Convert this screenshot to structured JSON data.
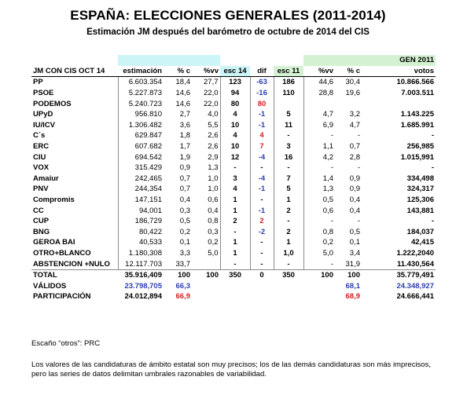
{
  "title": "ESPAÑA: ELECCIONES GENERALES (2011-2014)",
  "subtitle": "Estimación JM después del barómetro de octubre de 2014 del CIS",
  "gen_label": "GEN 2011",
  "headers": [
    "JM CON CIS OCT 14",
    "estimación",
    "% c",
    "%vv",
    "esc 14",
    "dif",
    "esc 11",
    "%vv",
    "% c",
    "votos"
  ],
  "rows": [
    {
      "party": "PP",
      "est": "6.603.354",
      "pc": "18,4",
      "pvv": "27,7",
      "esc14": "123",
      "dif": "-63",
      "esc11": "186",
      "pvv11": "44,6",
      "pc11": "30,4",
      "votos": "10.866.566"
    },
    {
      "party": "PSOE",
      "est": "5.227.873",
      "pc": "14,6",
      "pvv": "22,0",
      "esc14": "94",
      "dif": "-16",
      "esc11": "110",
      "pvv11": "28,8",
      "pc11": "19,6",
      "votos": "7.003.511"
    },
    {
      "party": "PODEMOS",
      "est": "5.240.723",
      "pc": "14,6",
      "pvv": "22,0",
      "esc14": "80",
      "dif": "80",
      "esc11": "",
      "pvv11": "",
      "pc11": "",
      "votos": ""
    },
    {
      "party": "UPyD",
      "est": "956.810",
      "pc": "2,7",
      "pvv": "4,0",
      "esc14": "4",
      "dif": "-1",
      "esc11": "5",
      "pvv11": "4,7",
      "pc11": "3,2",
      "votos": "1.143.225"
    },
    {
      "party": "IU/ICV",
      "est": "1.306.482",
      "pc": "3,6",
      "pvv": "5,5",
      "esc14": "10",
      "dif": "-1",
      "esc11": "11",
      "pvv11": "6,9",
      "pc11": "4,7",
      "votos": "1.685.991"
    },
    {
      "party": "C´s",
      "est": "629.847",
      "pc": "1,8",
      "pvv": "2,6",
      "esc14": "4",
      "dif": "4",
      "esc11": "-",
      "pvv11": "-",
      "pc11": "-",
      "votos": "-"
    },
    {
      "party": "ERC",
      "est": "607.682",
      "pc": "1,7",
      "pvv": "2,6",
      "esc14": "10",
      "dif": "7",
      "esc11": "3",
      "pvv11": "1,1",
      "pc11": "0,7",
      "votos": "256,985"
    },
    {
      "party": "CIU",
      "est": "694.542",
      "pc": "1,9",
      "pvv": "2,9",
      "esc14": "12",
      "dif": "-4",
      "esc11": "16",
      "pvv11": "4,2",
      "pc11": "2,8",
      "votos": "1.015,991"
    },
    {
      "party": "VOX",
      "est": "315.429",
      "pc": "0,9",
      "pvv": "1,3",
      "esc14": "-",
      "dif": "-",
      "esc11": "-",
      "pvv11": "-",
      "pc11": "-",
      "votos": "-"
    },
    {
      "party": "Amaiur",
      "est": "242,465",
      "pc": "0,7",
      "pvv": "1,0",
      "esc14": "3",
      "dif": "-4",
      "esc11": "7",
      "pvv11": "1,4",
      "pc11": "0,9",
      "votos": "334,498"
    },
    {
      "party": "PNV",
      "est": "244,354",
      "pc": "0,7",
      "pvv": "1,0",
      "esc14": "4",
      "dif": "-1",
      "esc11": "5",
      "pvv11": "1,3",
      "pc11": "0,9",
      "votos": "324,317"
    },
    {
      "party": "Compromis",
      "est": "147,151",
      "pc": "0,4",
      "pvv": "0,6",
      "esc14": "1",
      "dif": "-",
      "esc11": "1",
      "pvv11": "0,5",
      "pc11": "0,4",
      "votos": "125,306"
    },
    {
      "party": "CC",
      "est": "94,001",
      "pc": "0,3",
      "pvv": "0,4",
      "esc14": "1",
      "dif": "-1",
      "esc11": "2",
      "pvv11": "0,6",
      "pc11": "0,4",
      "votos": "143,881"
    },
    {
      "party": "CUP",
      "est": "186,729",
      "pc": "0,5",
      "pvv": "0,8",
      "esc14": "2",
      "dif": "2",
      "esc11": "-",
      "pvv11": "-",
      "pc11": "-",
      "votos": "-"
    },
    {
      "party": "BNG",
      "est": "80,422",
      "pc": "0,2",
      "pvv": "0,3",
      "esc14": "-",
      "dif": "-2",
      "esc11": "2",
      "pvv11": "0,8",
      "pc11": "0,5",
      "votos": "184,037"
    },
    {
      "party": "GEROA BAI",
      "est": "40,533",
      "pc": "0,1",
      "pvv": "0,2",
      "esc14": "1",
      "dif": "-",
      "esc11": "1",
      "pvv11": "0,2",
      "pc11": "0,1",
      "votos": "42,415"
    },
    {
      "party": "OTRO+BLANCO",
      "est": "1.180,308",
      "pc": "3,3",
      "pvv": "5,0",
      "esc14": "1",
      "dif": "-",
      "esc11": "1,0",
      "pvv11": "5,0",
      "pc11": "3,4",
      "votos": "1.222,2040"
    },
    {
      "party": "ABSTENCION +NULO",
      "est": "12.117.703",
      "pc": "33,7",
      "pvv": "",
      "esc14": "-",
      "dif": "-",
      "esc11": "-",
      "pvv11": "-",
      "pc11": "31,9",
      "votos": "11.430,564"
    }
  ],
  "total": {
    "party": "TOTAL",
    "est": "35.916,409",
    "pc": "100",
    "pvv": "100",
    "esc14": "350",
    "dif": "0",
    "esc11": "350",
    "pvv11": "100",
    "pc11": "100",
    "votos": "35.779,491"
  },
  "validos": {
    "party": "VÁLIDOS",
    "est": "23.798,705",
    "pc": "66,3",
    "pc11": "68,1",
    "votos": "24.348,927"
  },
  "participacion": {
    "party": "PARTICIPACIÓN",
    "est": "24.012,894",
    "pc": "66,9",
    "pc11": "68,9",
    "votos": "24.666,441"
  },
  "note_otros": "Escaño “otros”: PRC",
  "note_footer": "Los valores de las candidaturas de ámbito estatal son muy precisos; los de las demás candidaturas son más imprecisos, pero las series de datos delimitan umbrales razonables de variabilidad.",
  "colors": {
    "cyan_header": "#ccf5f7",
    "green_header": "#d4f2d2",
    "blue_text": "#2b3fb0",
    "red_text": "#d41f1f"
  }
}
